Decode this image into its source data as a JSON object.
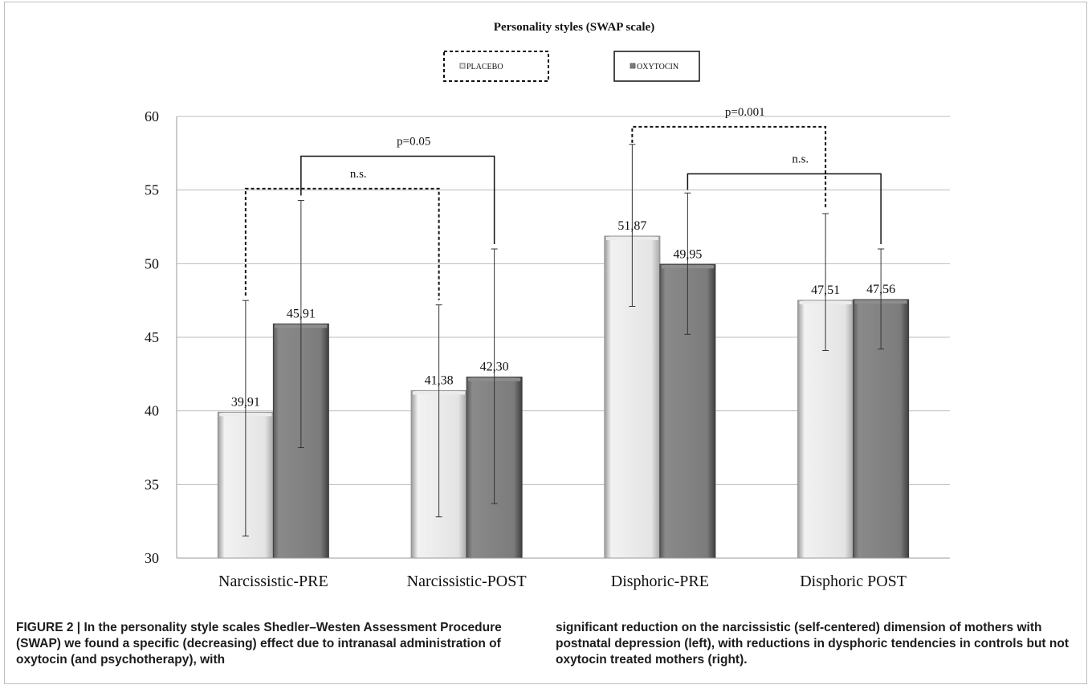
{
  "chart_data": {
    "type": "bar",
    "title": "Personality styles (SWAP scale)",
    "categories": [
      "Narcissistic-PRE",
      "Narcissistic-POST",
      "Disphoric-PRE",
      "Disphoric POST"
    ],
    "series": [
      {
        "name": "PLACEBO",
        "values": [
          39.91,
          41.38,
          51.87,
          47.51
        ],
        "labels": [
          "39,91",
          "41,38",
          "51,87",
          "47,51"
        ],
        "error_low": [
          31.5,
          32.8,
          47.1,
          44.1
        ],
        "error_high": [
          47.5,
          47.2,
          58.1,
          53.4
        ],
        "color": "#e2e2e2"
      },
      {
        "name": "OXYTOCIN",
        "values": [
          45.91,
          42.3,
          49.95,
          47.56
        ],
        "labels": [
          "45,91",
          "42,30",
          "49,95",
          "47,56"
        ],
        "error_low": [
          37.5,
          33.7,
          45.2,
          44.2
        ],
        "error_high": [
          54.3,
          51.0,
          54.8,
          51.0
        ],
        "color": "#7d7d7d"
      }
    ],
    "ylim": [
      30,
      60
    ],
    "yticks": [
      "30",
      "35",
      "40",
      "45",
      "50",
      "55",
      "60"
    ],
    "grid": true,
    "legend_position": "top-center",
    "annotations": [
      {
        "text": "n.s.",
        "style": "dashed",
        "from": {
          "category": 0,
          "series": 0
        },
        "to": {
          "category": 1,
          "series": 0
        },
        "level": 55.1
      },
      {
        "text": "p=0.05",
        "style": "solid",
        "from": {
          "category": 0,
          "series": 1
        },
        "to": {
          "category": 1,
          "series": 1
        },
        "level": 57.3
      },
      {
        "text": "p=0.001",
        "style": "dashed",
        "from": {
          "category": 2,
          "series": 0
        },
        "to": {
          "category": 3,
          "series": 0
        },
        "level": 59.3
      },
      {
        "text": "n.s.",
        "style": "solid",
        "from": {
          "category": 2,
          "series": 1
        },
        "to": {
          "category": 3,
          "series": 1
        },
        "level": 56.1
      }
    ]
  },
  "caption": {
    "label": "FIGURE 2 | ",
    "left_text": "In  the personality style scales Shedler–Westen Assessment Procedure (SWAP) we found a specific (decreasing) effect due to intranasal administration of oxytocin (and psychotherapy), with",
    "right_text": "significant reduction on the narcissistic (self-centered) dimension of mothers with postnatal depression (left), with reductions in dysphoric tendencies in controls but not oxytocin treated mothers (right)."
  }
}
